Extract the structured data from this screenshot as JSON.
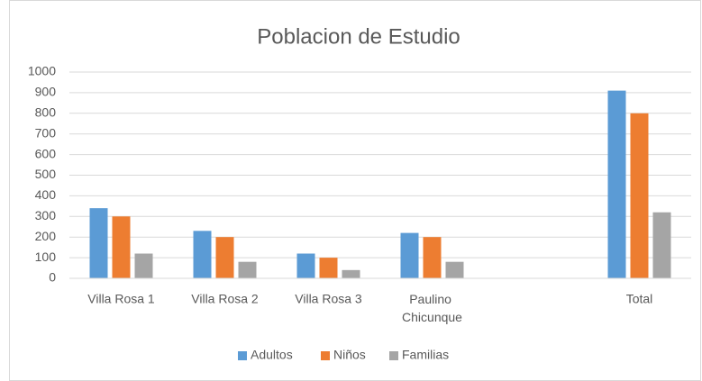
{
  "chart_data": {
    "type": "bar",
    "title": "Poblacion de Estudio",
    "categories": [
      "Villa Rosa 1",
      "Villa Rosa 2",
      "Villa Rosa 3",
      "Paulino Chicunque",
      null,
      "Total"
    ],
    "series": [
      {
        "name": "Adultos",
        "color": "#5b9bd5",
        "values": [
          340,
          230,
          120,
          220,
          null,
          910
        ]
      },
      {
        "name": "Niños",
        "color": "#ed7d31",
        "values": [
          300,
          200,
          100,
          200,
          null,
          800
        ]
      },
      {
        "name": "Familias",
        "color": "#a5a5a5",
        "values": [
          120,
          80,
          40,
          80,
          null,
          320
        ]
      }
    ],
    "ylim": [
      0,
      1000
    ],
    "yticks": [
      0,
      100,
      200,
      300,
      400,
      500,
      600,
      700,
      800,
      900,
      1000
    ],
    "grid": true,
    "legend": "bottom"
  }
}
